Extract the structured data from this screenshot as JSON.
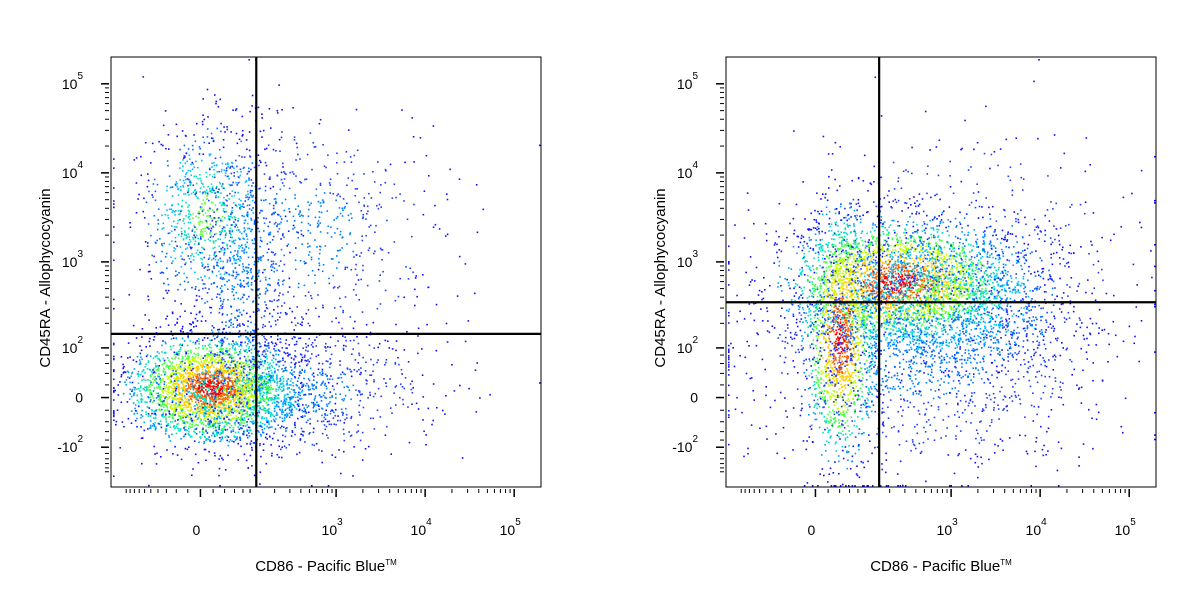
{
  "chart_data": [
    {
      "type": "scatter",
      "subtype": "flow-cytometry-density-dot-plot",
      "xlabel": "CD86 - Pacific Blue",
      "xlabel_tm": "TM",
      "ylabel": "CD45RA - Allophycocyanin",
      "x_scale": "biexponential",
      "y_scale": "biexponential",
      "xlim": [
        -300,
        200000
      ],
      "ylim": [
        -300,
        200000
      ],
      "x_ticks": [
        {
          "base": "0",
          "exp": "",
          "value": 0
        },
        {
          "base": "10",
          "exp": "3",
          "value": 1000
        },
        {
          "base": "10",
          "exp": "4",
          "value": 10000
        },
        {
          "base": "10",
          "exp": "5",
          "value": 100000
        }
      ],
      "y_ticks": [
        {
          "base": "-10",
          "exp": "2",
          "value": -100
        },
        {
          "base": "0",
          "exp": "",
          "value": 0
        },
        {
          "base": "10",
          "exp": "2",
          "value": 100
        },
        {
          "base": "10",
          "exp": "3",
          "value": 1000
        },
        {
          "base": "10",
          "exp": "4",
          "value": 10000
        },
        {
          "base": "10",
          "exp": "5",
          "value": 100000
        }
      ],
      "gate": {
        "x": 120,
        "y": 150
      },
      "populations": [
        {
          "x": 15,
          "y": 15,
          "spread_x": 0.09,
          "spread_y": 0.06,
          "count": 2600,
          "density": "high"
        },
        {
          "x": 60,
          "y": 5,
          "spread_x": 0.1,
          "spread_y": 0.05,
          "count": 700,
          "density": "medium"
        },
        {
          "x": 10,
          "y": 3300,
          "spread_x": 0.07,
          "spread_y": 0.1,
          "count": 700,
          "density": "medium"
        },
        {
          "x": 300,
          "y": 2000,
          "spread_x": 0.18,
          "spread_y": 0.14,
          "count": 700,
          "density": "low"
        },
        {
          "x": 80,
          "y": 500,
          "spread_x": 0.06,
          "spread_y": 0.18,
          "count": 500,
          "density": "low"
        },
        {
          "x": 400,
          "y": 10,
          "spread_x": 0.15,
          "spread_y": 0.08,
          "count": 700,
          "density": "low"
        }
      ]
    },
    {
      "type": "scatter",
      "subtype": "flow-cytometry-density-dot-plot",
      "xlabel": "CD86 - Pacific Blue",
      "xlabel_tm": "TM",
      "ylabel": "CD45RA - Allophycocyanin",
      "x_scale": "biexponential",
      "y_scale": "biexponential",
      "xlim": [
        -300,
        200000
      ],
      "ylim": [
        -300,
        200000
      ],
      "x_ticks": [
        {
          "base": "0",
          "exp": "",
          "value": 0
        },
        {
          "base": "10",
          "exp": "3",
          "value": 1000
        },
        {
          "base": "10",
          "exp": "4",
          "value": 10000
        },
        {
          "base": "10",
          "exp": "5",
          "value": 100000
        }
      ],
      "y_ticks": [
        {
          "base": "-10",
          "exp": "2",
          "value": -100
        },
        {
          "base": "0",
          "exp": "",
          "value": 0
        },
        {
          "base": "10",
          "exp": "2",
          "value": 100
        },
        {
          "base": "10",
          "exp": "3",
          "value": 1000
        },
        {
          "base": "10",
          "exp": "4",
          "value": 10000
        },
        {
          "base": "10",
          "exp": "5",
          "value": 100000
        }
      ],
      "gate": {
        "x": 150,
        "y": 350
      },
      "populations": [
        {
          "x": 40,
          "y": 150,
          "spread_x": 0.04,
          "spread_y": 0.14,
          "count": 1400,
          "density": "high"
        },
        {
          "x": 250,
          "y": 600,
          "spread_x": 0.13,
          "spread_y": 0.07,
          "count": 2200,
          "density": "high"
        },
        {
          "x": 700,
          "y": 400,
          "spread_x": 0.14,
          "spread_y": 0.08,
          "count": 1400,
          "density": "medium"
        },
        {
          "x": 500,
          "y": 100,
          "spread_x": 0.2,
          "spread_y": 0.14,
          "count": 1500,
          "density": "low"
        },
        {
          "x": 1200,
          "y": 1000,
          "spread_x": 0.2,
          "spread_y": 0.15,
          "count": 500,
          "density": "low"
        }
      ]
    }
  ]
}
